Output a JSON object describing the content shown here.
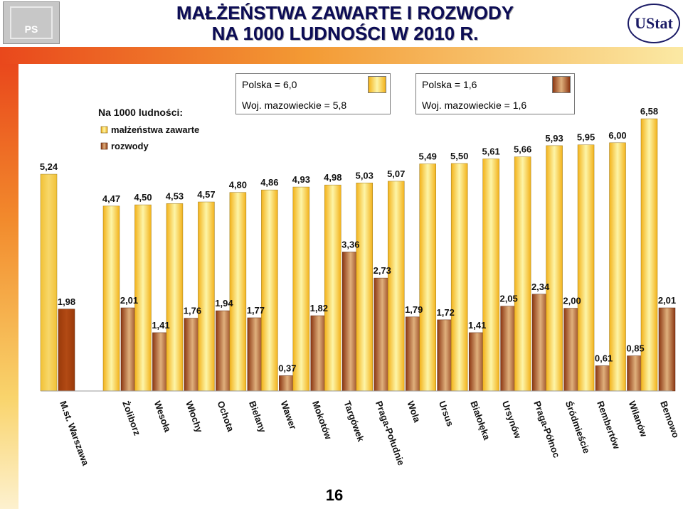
{
  "header": {
    "title_line1": "MAŁŻEŃSTWA ZAWARTE I ROZWODY",
    "title_line2": "NA 1000 LUDNOŚCI W 2010 R.",
    "logo_left_text": "PS",
    "logo_right_text": "UStat",
    "page_number": "16"
  },
  "stats": {
    "marriages": {
      "line1": "Polska = 6,0",
      "line2": "Woj. mazowieckie = 5,8"
    },
    "divorces": {
      "line1": "Polska = 1,6",
      "line2": "Woj. mazowieckie = 1,6"
    }
  },
  "colors": {
    "marriage_light": "#fdf5a8",
    "marriage_dark": "#f3b21a",
    "divorce_light": "#e0b07c",
    "divorce_dark": "#8b3612",
    "warszawa_marriage": "#f2c236",
    "warszawa_divorce": "#9a3a0a",
    "title": "#0c0c55"
  },
  "chart_data": {
    "type": "bar",
    "legend": {
      "title": "Na 1000 ludności:",
      "position": "top-left"
    },
    "categories": [
      "M.st. Warszawa",
      "Żoliborz",
      "Wesoła",
      "Włochy",
      "Ochota",
      "Bielany",
      "Wawer",
      "Mokotów",
      "Targówek",
      "Praga-Południe",
      "Wola",
      "Ursus",
      "Białołęka",
      "Ursynów",
      "Praga-Północ",
      "Śródmieście",
      "Rembertów",
      "Wilanów",
      "Bemowo"
    ],
    "series": [
      {
        "name": "małżeństwa zawarte",
        "values": [
          5.24,
          4.47,
          4.5,
          4.53,
          4.57,
          4.8,
          4.86,
          4.93,
          4.98,
          5.03,
          5.07,
          5.49,
          5.5,
          5.61,
          5.66,
          5.93,
          5.95,
          6.0,
          6.58
        ],
        "labels": [
          "5,24",
          "4,47",
          "4,50",
          "4,53",
          "4,57",
          "4,80",
          "4,86",
          "4,93",
          "4,98",
          "5,03",
          "5,07",
          "5,49",
          "5,50",
          "5,61",
          "5,66",
          "5,93",
          "5,95",
          "6,00",
          "6,58"
        ]
      },
      {
        "name": "rozwody",
        "values": [
          1.98,
          2.01,
          1.41,
          1.76,
          1.94,
          1.77,
          0.37,
          1.82,
          3.36,
          2.73,
          1.79,
          1.72,
          1.41,
          2.05,
          2.34,
          2.0,
          0.61,
          0.85,
          2.01
        ],
        "labels": [
          "1,98",
          "2,01",
          "1,41",
          "1,76",
          "1,94",
          "1,77",
          "0,37",
          "1,82",
          "3,36",
          "2,73",
          "1,79",
          "1,72",
          "1,41",
          "2,05",
          "2,34",
          "2,00",
          "0,61",
          "0,85",
          "2,01"
        ]
      }
    ],
    "ylim": [
      0,
      7
    ],
    "grid": false
  }
}
